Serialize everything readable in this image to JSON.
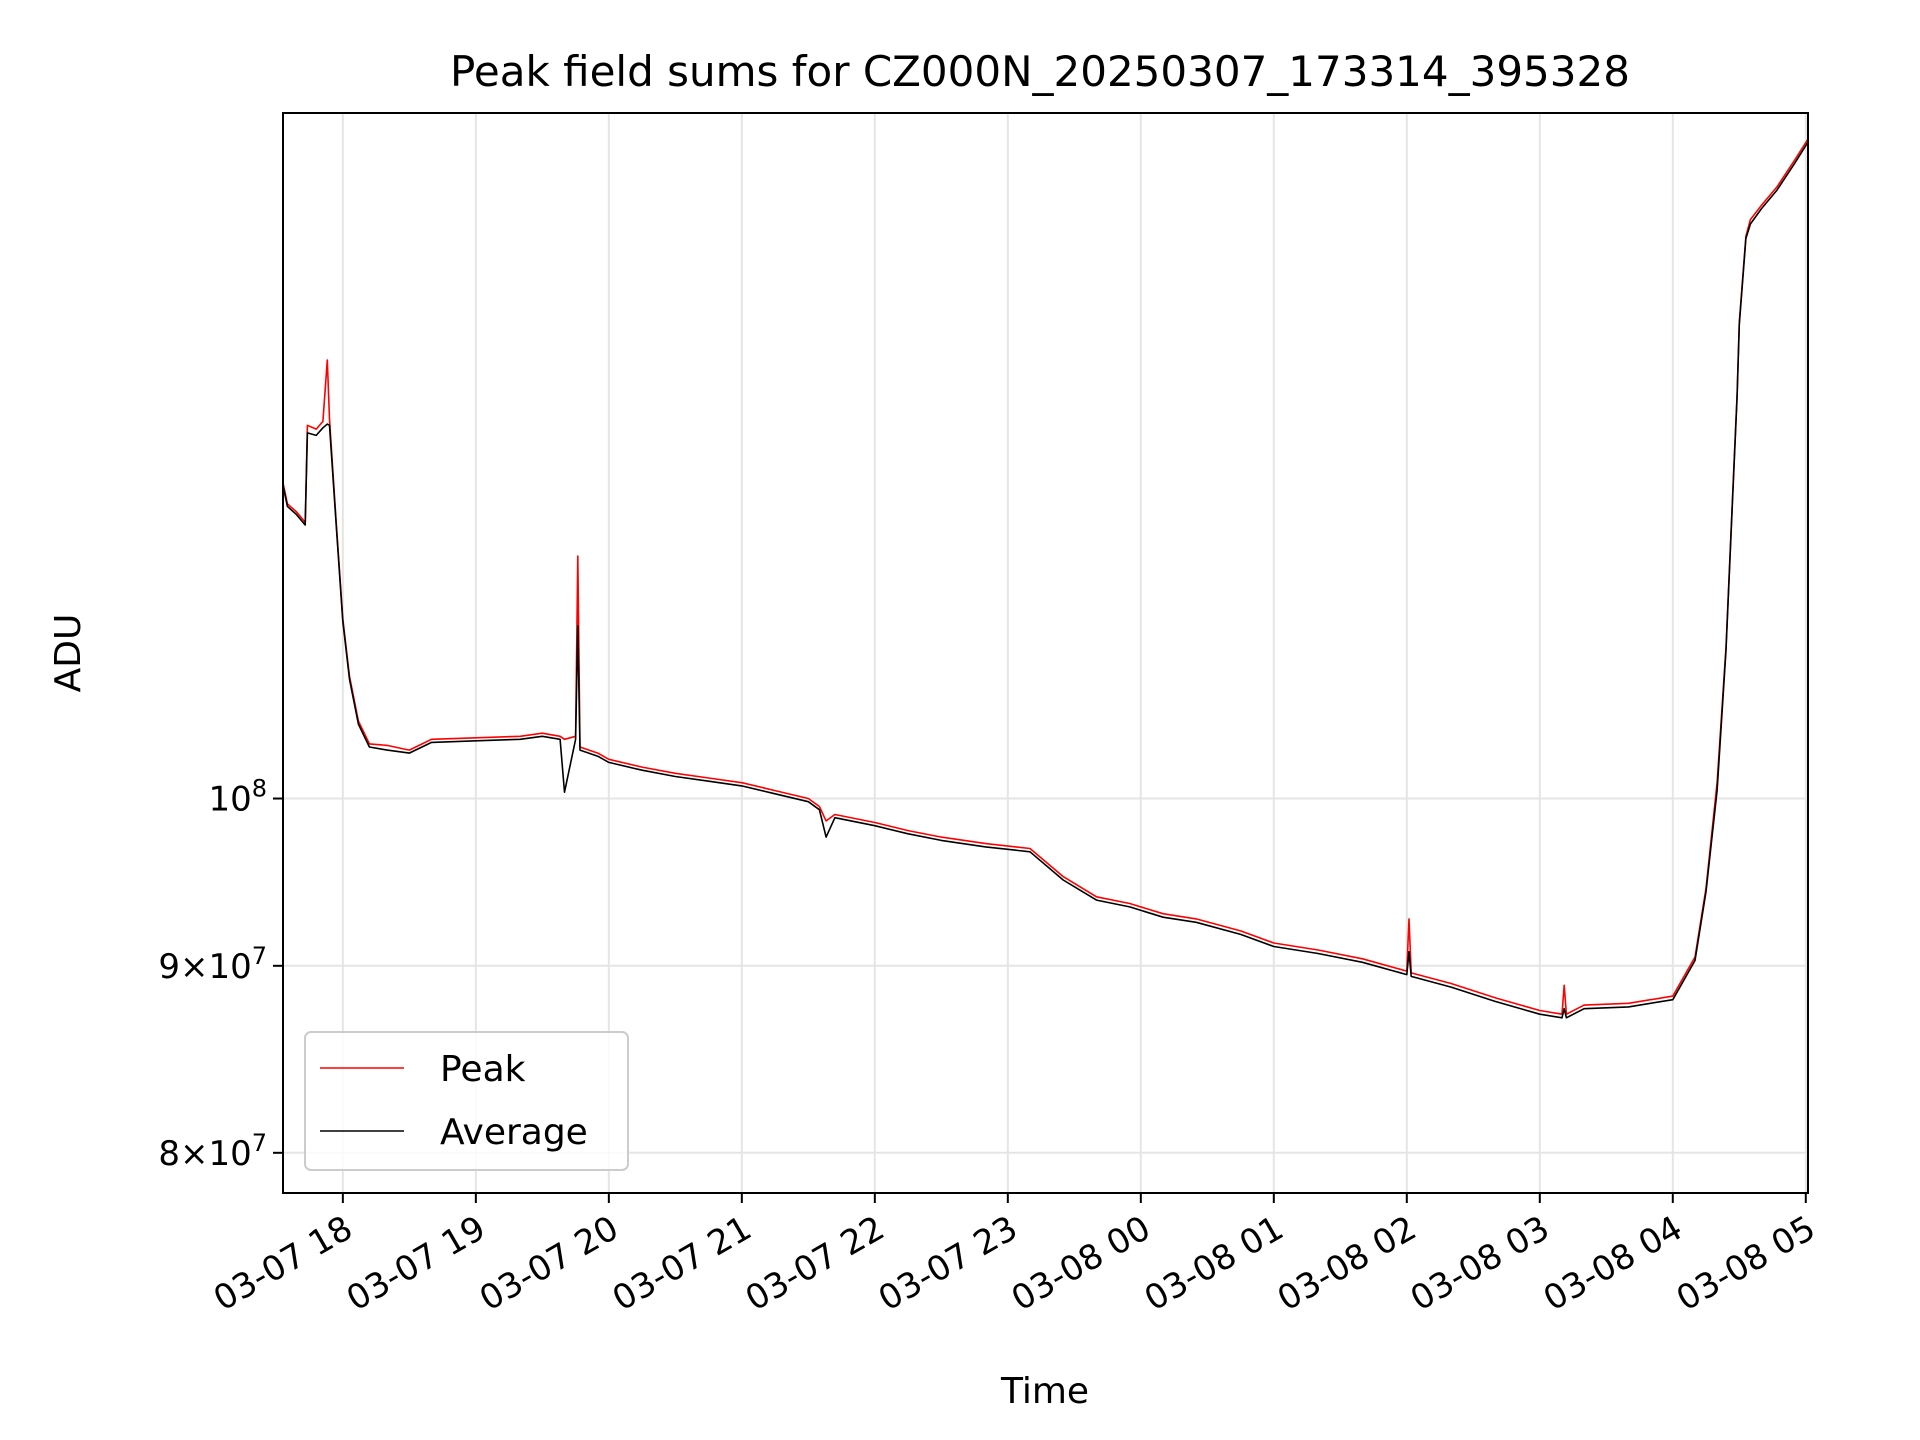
{
  "chart_data": {
    "type": "line",
    "title": "Peak field sums for CZ000N_20250307_173314_395328",
    "xlabel": "Time",
    "ylabel": "ADU",
    "y_scale": "log",
    "grid": true,
    "legend_position": "lower-left",
    "xlim": [
      "2025-03-07 17:33",
      "2025-03-08 05:01"
    ],
    "ylim": [
      78000000,
      154000000
    ],
    "x_ticks": [
      {
        "value": "2025-03-07 18:00",
        "label": "03-07 18"
      },
      {
        "value": "2025-03-07 19:00",
        "label": "03-07 19"
      },
      {
        "value": "2025-03-07 20:00",
        "label": "03-07 20"
      },
      {
        "value": "2025-03-07 21:00",
        "label": "03-07 21"
      },
      {
        "value": "2025-03-07 22:00",
        "label": "03-07 22"
      },
      {
        "value": "2025-03-07 23:00",
        "label": "03-07 23"
      },
      {
        "value": "2025-03-08 00:00",
        "label": "03-08 00"
      },
      {
        "value": "2025-03-08 01:00",
        "label": "03-08 01"
      },
      {
        "value": "2025-03-08 02:00",
        "label": "03-08 02"
      },
      {
        "value": "2025-03-08 03:00",
        "label": "03-08 03"
      },
      {
        "value": "2025-03-08 04:00",
        "label": "03-08 04"
      },
      {
        "value": "2025-03-08 05:00",
        "label": "03-08 05"
      }
    ],
    "y_ticks": [
      {
        "value": 80000000,
        "base": "8",
        "exp": "7"
      },
      {
        "value": 90000000,
        "base": "9",
        "exp": "7"
      },
      {
        "value": 100000000,
        "base": "",
        "exp": "8"
      }
    ],
    "series": [
      {
        "name": "Peak",
        "color": "#ff0000",
        "points": [
          [
            "2025-03-07 17:33",
            122000000
          ],
          [
            "2025-03-07 17:35",
            120400000
          ],
          [
            "2025-03-07 17:39",
            119800000
          ],
          [
            "2025-03-07 17:43",
            119000000
          ],
          [
            "2025-03-07 17:44",
            126500000
          ],
          [
            "2025-03-07 17:48",
            126200000
          ],
          [
            "2025-03-07 17:51",
            126800000
          ],
          [
            "2025-03-07 17:53",
            131800000
          ],
          [
            "2025-03-07 17:54",
            127000000
          ],
          [
            "2025-03-07 17:57",
            119000000
          ],
          [
            "2025-03-07 18:00",
            112000000
          ],
          [
            "2025-03-07 18:03",
            108000000
          ],
          [
            "2025-03-07 18:07",
            105000000
          ],
          [
            "2025-03-07 18:12",
            103500000
          ],
          [
            "2025-03-07 18:20",
            103400000
          ],
          [
            "2025-03-07 18:30",
            103100000
          ],
          [
            "2025-03-07 18:40",
            103800000
          ],
          [
            "2025-03-07 19:00",
            103900000
          ],
          [
            "2025-03-07 19:20",
            104000000
          ],
          [
            "2025-03-07 19:30",
            104200000
          ],
          [
            "2025-03-07 19:38",
            104000000
          ],
          [
            "2025-03-07 19:40",
            103800000
          ],
          [
            "2025-03-07 19:45",
            104000000
          ],
          [
            "2025-03-07 19:46",
            116500000
          ],
          [
            "2025-03-07 19:47",
            103300000
          ],
          [
            "2025-03-07 19:55",
            102900000
          ],
          [
            "2025-03-07 20:00",
            102500000
          ],
          [
            "2025-03-07 20:15",
            102000000
          ],
          [
            "2025-03-07 20:30",
            101600000
          ],
          [
            "2025-03-07 20:45",
            101300000
          ],
          [
            "2025-03-07 21:00",
            101000000
          ],
          [
            "2025-03-07 21:15",
            100500000
          ],
          [
            "2025-03-07 21:30",
            100000000
          ],
          [
            "2025-03-07 21:35",
            99500000
          ],
          [
            "2025-03-07 21:38",
            98600000
          ],
          [
            "2025-03-07 21:42",
            99000000
          ],
          [
            "2025-03-07 22:00",
            98500000
          ],
          [
            "2025-03-07 22:15",
            98000000
          ],
          [
            "2025-03-07 22:30",
            97600000
          ],
          [
            "2025-03-07 22:50",
            97200000
          ],
          [
            "2025-03-07 23:10",
            96900000
          ],
          [
            "2025-03-07 23:25",
            95200000
          ],
          [
            "2025-03-07 23:40",
            94000000
          ],
          [
            "2025-03-07 23:55",
            93600000
          ],
          [
            "2025-03-08 00:10",
            93000000
          ],
          [
            "2025-03-08 00:25",
            92700000
          ],
          [
            "2025-03-08 00:45",
            92000000
          ],
          [
            "2025-03-08 01:00",
            91300000
          ],
          [
            "2025-03-08 01:20",
            90900000
          ],
          [
            "2025-03-08 01:40",
            90400000
          ],
          [
            "2025-03-08 02:00",
            89700000
          ],
          [
            "2025-03-08 02:01",
            92700000
          ],
          [
            "2025-03-08 02:02",
            89600000
          ],
          [
            "2025-03-08 02:20",
            89000000
          ],
          [
            "2025-03-08 02:40",
            88200000
          ],
          [
            "2025-03-08 03:00",
            87500000
          ],
          [
            "2025-03-08 03:10",
            87300000
          ],
          [
            "2025-03-08 03:11",
            88900000
          ],
          [
            "2025-03-08 03:12",
            87300000
          ],
          [
            "2025-03-08 03:20",
            87800000
          ],
          [
            "2025-03-08 03:40",
            87900000
          ],
          [
            "2025-03-08 04:00",
            88300000
          ],
          [
            "2025-03-08 04:10",
            90500000
          ],
          [
            "2025-03-08 04:15",
            94500000
          ],
          [
            "2025-03-08 04:20",
            101000000
          ],
          [
            "2025-03-08 04:24",
            110000000
          ],
          [
            "2025-03-08 04:27",
            121000000
          ],
          [
            "2025-03-08 04:29",
            129000000
          ],
          [
            "2025-03-08 04:30",
            135000000
          ],
          [
            "2025-03-08 04:33",
            142500000
          ],
          [
            "2025-03-08 04:35",
            144000000
          ],
          [
            "2025-03-08 04:40",
            145300000
          ],
          [
            "2025-03-08 04:47",
            147000000
          ],
          [
            "2025-03-08 04:55",
            149500000
          ],
          [
            "2025-03-08 05:01",
            151500000
          ]
        ]
      },
      {
        "name": "Average",
        "color": "#000000",
        "points": [
          [
            "2025-03-07 17:33",
            121800000
          ],
          [
            "2025-03-07 17:35",
            120200000
          ],
          [
            "2025-03-07 17:39",
            119600000
          ],
          [
            "2025-03-07 17:43",
            118800000
          ],
          [
            "2025-03-07 17:44",
            125900000
          ],
          [
            "2025-03-07 17:48",
            125700000
          ],
          [
            "2025-03-07 17:51",
            126300000
          ],
          [
            "2025-03-07 17:53",
            126600000
          ],
          [
            "2025-03-07 17:54",
            126500000
          ],
          [
            "2025-03-07 17:57",
            118800000
          ],
          [
            "2025-03-07 18:00",
            111800000
          ],
          [
            "2025-03-07 18:03",
            107800000
          ],
          [
            "2025-03-07 18:07",
            104800000
          ],
          [
            "2025-03-07 18:12",
            103300000
          ],
          [
            "2025-03-07 18:20",
            103100000
          ],
          [
            "2025-03-07 18:30",
            102900000
          ],
          [
            "2025-03-07 18:40",
            103600000
          ],
          [
            "2025-03-07 19:00",
            103700000
          ],
          [
            "2025-03-07 19:20",
            103800000
          ],
          [
            "2025-03-07 19:30",
            104000000
          ],
          [
            "2025-03-07 19:38",
            103800000
          ],
          [
            "2025-03-07 19:40",
            100400000
          ],
          [
            "2025-03-07 19:45",
            103800000
          ],
          [
            "2025-03-07 19:46",
            111500000
          ],
          [
            "2025-03-07 19:47",
            103100000
          ],
          [
            "2025-03-07 19:55",
            102700000
          ],
          [
            "2025-03-07 20:00",
            102300000
          ],
          [
            "2025-03-07 20:15",
            101800000
          ],
          [
            "2025-03-07 20:30",
            101400000
          ],
          [
            "2025-03-07 20:45",
            101100000
          ],
          [
            "2025-03-07 21:00",
            100800000
          ],
          [
            "2025-03-07 21:15",
            100300000
          ],
          [
            "2025-03-07 21:30",
            99800000
          ],
          [
            "2025-03-07 21:35",
            99300000
          ],
          [
            "2025-03-07 21:38",
            97600000
          ],
          [
            "2025-03-07 21:42",
            98800000
          ],
          [
            "2025-03-07 22:00",
            98300000
          ],
          [
            "2025-03-07 22:15",
            97800000
          ],
          [
            "2025-03-07 22:30",
            97400000
          ],
          [
            "2025-03-07 22:50",
            97000000
          ],
          [
            "2025-03-07 23:10",
            96700000
          ],
          [
            "2025-03-07 23:25",
            95000000
          ],
          [
            "2025-03-07 23:40",
            93800000
          ],
          [
            "2025-03-07 23:55",
            93400000
          ],
          [
            "2025-03-08 00:10",
            92800000
          ],
          [
            "2025-03-08 00:25",
            92500000
          ],
          [
            "2025-03-08 00:45",
            91800000
          ],
          [
            "2025-03-08 01:00",
            91100000
          ],
          [
            "2025-03-08 01:20",
            90700000
          ],
          [
            "2025-03-08 01:40",
            90200000
          ],
          [
            "2025-03-08 02:00",
            89500000
          ],
          [
            "2025-03-08 02:01",
            90800000
          ],
          [
            "2025-03-08 02:02",
            89400000
          ],
          [
            "2025-03-08 02:20",
            88800000
          ],
          [
            "2025-03-08 02:40",
            88000000
          ],
          [
            "2025-03-08 03:00",
            87300000
          ],
          [
            "2025-03-08 03:10",
            87100000
          ],
          [
            "2025-03-08 03:11",
            87600000
          ],
          [
            "2025-03-08 03:12",
            87100000
          ],
          [
            "2025-03-08 03:20",
            87600000
          ],
          [
            "2025-03-08 03:40",
            87700000
          ],
          [
            "2025-03-08 04:00",
            88100000
          ],
          [
            "2025-03-08 04:10",
            90300000
          ],
          [
            "2025-03-08 04:15",
            94300000
          ],
          [
            "2025-03-08 04:20",
            100500000
          ],
          [
            "2025-03-08 04:24",
            109800000
          ],
          [
            "2025-03-08 04:27",
            120800000
          ],
          [
            "2025-03-08 04:29",
            128800000
          ],
          [
            "2025-03-08 04:30",
            134800000
          ],
          [
            "2025-03-08 04:33",
            142300000
          ],
          [
            "2025-03-08 04:35",
            143600000
          ],
          [
            "2025-03-08 04:40",
            145000000
          ],
          [
            "2025-03-08 04:47",
            146700000
          ],
          [
            "2025-03-08 04:55",
            149200000
          ],
          [
            "2025-03-08 05:01",
            151200000
          ]
        ]
      }
    ]
  }
}
